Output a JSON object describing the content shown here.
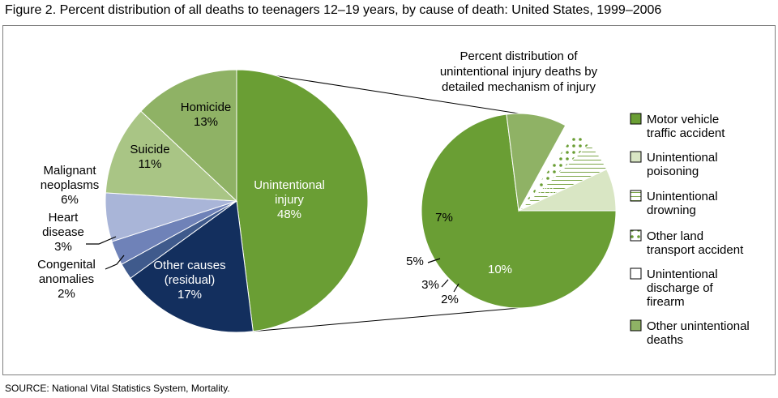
{
  "figure": {
    "title": "Figure 2. Percent distribution of all deaths to teenagers 12–19 years, by cause of death: United States, 1999–2006",
    "source": "SOURCE: National Vital Statistics System, Mortality."
  },
  "colors": {
    "motor": "#6a9e34",
    "poison": "#d9e6c4",
    "drowning_bg": "#ffffff",
    "drowning_line": "#7da64a",
    "otherland_dot": "#6a9e34",
    "firearm": "#ffffff",
    "otherunint": "#8fb265",
    "unintentional": "#6a9e34",
    "homicide": "#8fb265",
    "suicide": "#a9c585",
    "malignant": "#a9b5d8",
    "heart": "#6f82b8",
    "congenital": "#3f5a8c",
    "other": "#132f5e",
    "edge": "#ffffff"
  },
  "chart_data": [
    {
      "type": "pie",
      "title": "",
      "slices": [
        {
          "key": "unintentional",
          "label_lines": [
            "Unintentional",
            "injury",
            "48%"
          ],
          "value": 48
        },
        {
          "key": "other",
          "label_lines": [
            "Other causes",
            "(residual)",
            "17%"
          ],
          "value": 17
        },
        {
          "key": "congenital",
          "label_lines": [
            "Congenital",
            "anomalies",
            "2%"
          ],
          "value": 2
        },
        {
          "key": "heart",
          "label_lines": [
            "Heart",
            "disease",
            "3%"
          ],
          "value": 3
        },
        {
          "key": "malignant",
          "label_lines": [
            "Malignant",
            "neoplasms",
            "6%"
          ],
          "value": 6
        },
        {
          "key": "suicide",
          "label_lines": [
            "Suicide",
            "11%"
          ],
          "value": 11
        },
        {
          "key": "homicide",
          "label_lines": [
            "Homicide",
            "13%"
          ],
          "value": 13
        }
      ]
    },
    {
      "type": "pie",
      "title": "Percent distribution of unintentional injury deaths by detailed mechanism of injury",
      "title_lines": [
        "Percent distribution of",
        "unintentional injury deaths by",
        "detailed mechanism of injury"
      ],
      "slices": [
        {
          "key": "motor",
          "label": "Motor vehicle traffic accident",
          "legend_lines": [
            "Motor vehicle",
            "traffic accident"
          ],
          "value": 73,
          "value_label": "73%"
        },
        {
          "key": "otherunint",
          "label": "Other unintentional deaths",
          "legend_lines": [
            "Other unintentional",
            "deaths"
          ],
          "value": 10,
          "value_label": "10%"
        },
        {
          "key": "firearm",
          "label": "Unintentional discharge of firearm",
          "legend_lines": [
            "Unintentional",
            "discharge of",
            "firearm"
          ],
          "value": 2,
          "value_label": "2%"
        },
        {
          "key": "otherland",
          "label": "Other land transport accident",
          "legend_lines": [
            "Other land",
            "transport accident"
          ],
          "value": 3,
          "value_label": "3%"
        },
        {
          "key": "drowning",
          "label": "Unintentional drowning",
          "legend_lines": [
            "Unintentional",
            "drowning"
          ],
          "value": 5,
          "value_label": "5%"
        },
        {
          "key": "poison",
          "label": "Unintentional poisoning",
          "legend_lines": [
            "Unintentional",
            "poisoning"
          ],
          "value": 7,
          "value_label": "7%"
        }
      ],
      "legend_order": [
        "motor",
        "poison",
        "drowning",
        "otherland",
        "firearm",
        "otherunint"
      ],
      "legend_placement": "right"
    }
  ]
}
